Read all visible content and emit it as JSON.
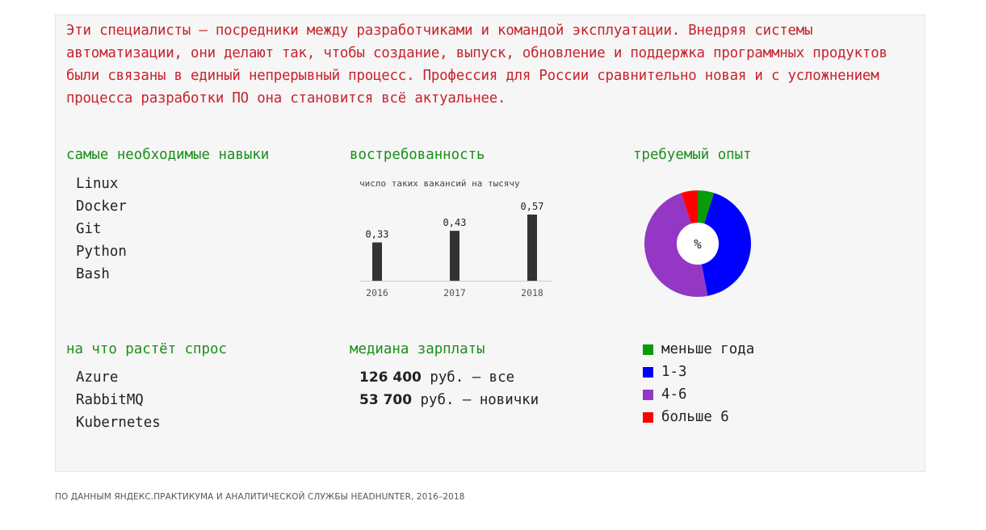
{
  "intro": "Эти специалисты — посредники между разработчиками и командой эксплуатации. Внедряя системы автоматизации, они делают так, чтобы создание, выпуск, обновление и поддержка программных продуктов были связаны в единый непрерывный процесс. Профессия для России сравнительно новая и с усложнением процесса разработки ПО она становится всё актуальнее.",
  "skills": {
    "title": "самые необходимые навыки",
    "items": [
      "Linux",
      "Docker",
      "Git",
      "Python",
      "Bash"
    ]
  },
  "demand": {
    "title": "востребованность"
  },
  "experience": {
    "title": "требуемый опыт",
    "center_label": "%"
  },
  "growing": {
    "title": "на что растёт спрос",
    "items": [
      "Azure",
      "RabbitMQ",
      "Kubernetes"
    ]
  },
  "salary": {
    "title": "медиана зарплаты",
    "rows": [
      {
        "value": "126 400",
        "text": " руб. — все"
      },
      {
        "value": "53 700",
        "text": " руб. — новички"
      }
    ]
  },
  "legend": [
    {
      "label": "меньше года",
      "color": "#0a9a0a"
    },
    {
      "label": "1-3",
      "color": "#0000ff"
    },
    {
      "label": "4-6",
      "color": "#9437c4"
    },
    {
      "label": "больше 6",
      "color": "#ff0000"
    }
  ],
  "source": "ПО ДАННЫМ ЯНДЕКС.ПРАКТИКУМА И АНАЛИТИЧЕСКОЙ СЛУЖБЫ HEADHUNTER, 2016–2018",
  "chart_data": [
    {
      "type": "bar",
      "title": "число таких вакансий на тысячу",
      "categories": [
        "2016",
        "2017",
        "2018"
      ],
      "values": [
        0.33,
        0.43,
        0.57
      ],
      "value_labels": [
        "0,33",
        "0,43",
        "0,57"
      ],
      "ylim": [
        0,
        0.57
      ],
      "bar_color": "#333333"
    },
    {
      "type": "pie",
      "categories": [
        "меньше года",
        "1-3",
        "4-6",
        "больше 6"
      ],
      "values": [
        5,
        42,
        48,
        5
      ],
      "colors": [
        "#0a9a0a",
        "#0000ff",
        "#9437c4",
        "#ff0000"
      ]
    }
  ]
}
